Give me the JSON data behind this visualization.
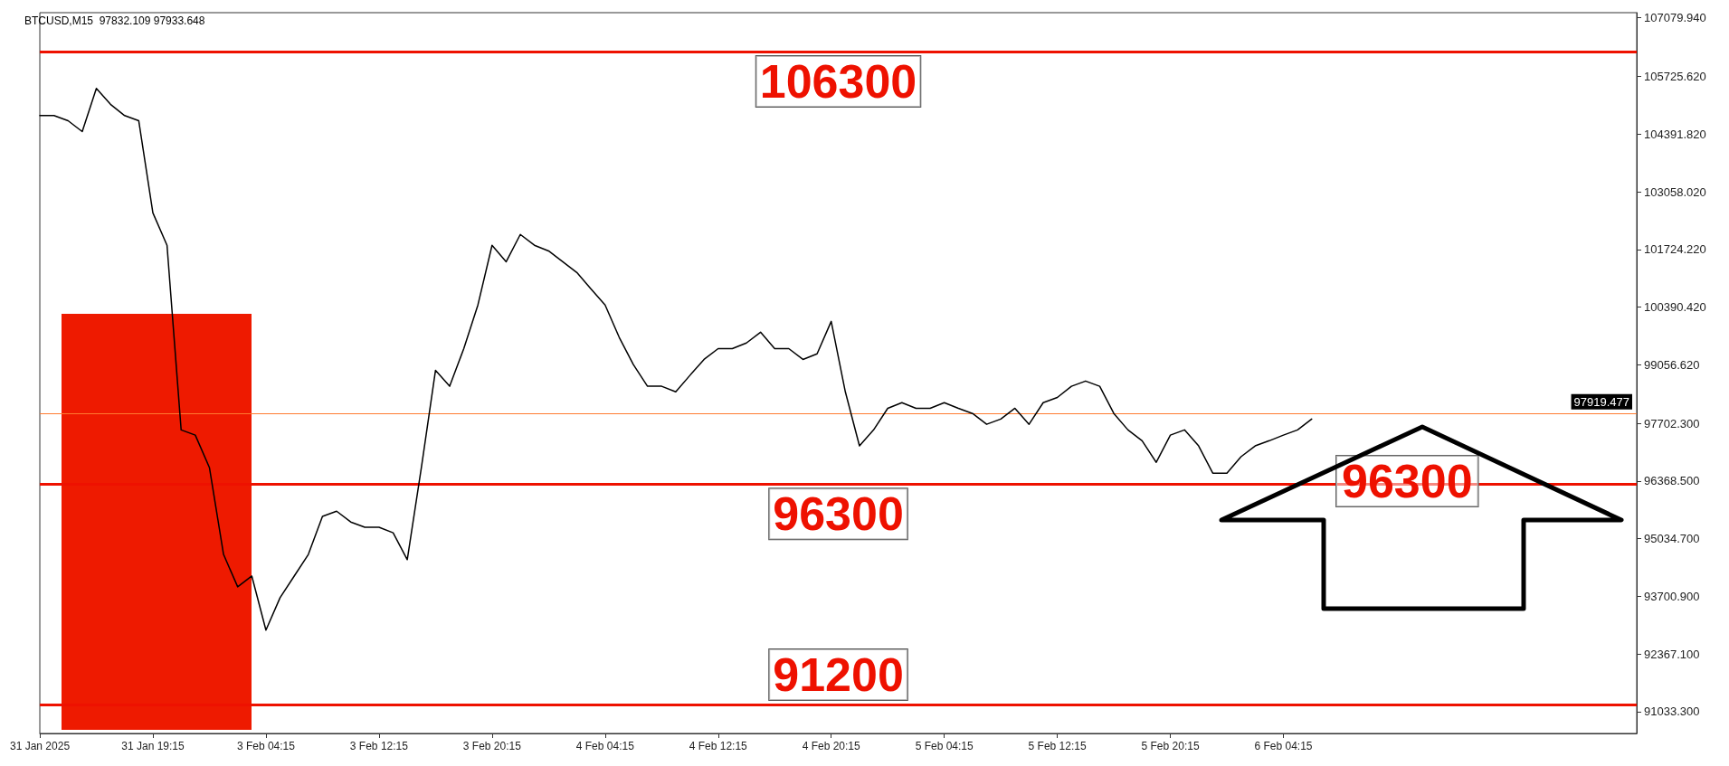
{
  "chart_data": {
    "type": "line",
    "title": "BTCUSD,M15  97832.109 97933.648",
    "categories": [
      "31 Jan 2025",
      null,
      null,
      null,
      null,
      null,
      null,
      null,
      "31 Jan 19:15",
      null,
      null,
      null,
      null,
      null,
      null,
      null,
      "3 Feb 04:15",
      null,
      null,
      null,
      null,
      null,
      null,
      null,
      "3 Feb 12:15",
      null,
      null,
      null,
      null,
      null,
      null,
      null,
      "3 Feb 20:15",
      null,
      null,
      null,
      null,
      null,
      null,
      null,
      "4 Feb 04:15",
      null,
      null,
      null,
      null,
      null,
      null,
      null,
      "4 Feb 12:15",
      null,
      null,
      null,
      null,
      null,
      null,
      null,
      "4 Feb 20:15",
      null,
      null,
      null,
      null,
      null,
      null,
      null,
      "5 Feb 04:15",
      null,
      null,
      null,
      null,
      null,
      null,
      null,
      "5 Feb 12:15",
      null,
      null,
      null,
      null,
      null,
      null,
      null,
      "5 Feb 20:15",
      null,
      null,
      null,
      null,
      null,
      null,
      null,
      "6 Feb 04:15",
      null,
      null,
      null,
      null,
      null,
      null,
      null,
      null,
      null,
      null,
      null,
      null,
      null,
      null,
      null,
      null,
      null,
      null,
      null,
      null,
      null,
      null,
      null,
      null,
      null
    ],
    "series": [
      {
        "color": "#000000",
        "values": [
          104820,
          104820,
          104700,
          104450,
          105450,
          105080,
          104820,
          104700,
          102570,
          101820,
          97550,
          97430,
          96680,
          94670,
          93920,
          94170,
          92920,
          93670,
          94170,
          94670,
          95550,
          95670,
          95420,
          95300,
          95300,
          95170,
          94550,
          96680,
          98930,
          98560,
          99430,
          100440,
          101820,
          101440,
          102070,
          101820,
          101690,
          101440,
          101190,
          100810,
          100440,
          99690,
          99060,
          98560,
          98560,
          98430,
          98810,
          99180,
          99430,
          99430,
          99560,
          99810,
          99430,
          99430,
          99180,
          99310,
          100060,
          98430,
          97180,
          97550,
          98050,
          98180,
          98050,
          98050,
          98180,
          98050,
          97930,
          97680,
          97800,
          98050,
          97680,
          98180,
          98300,
          98560,
          98680,
          98560,
          97930,
          97550,
          97300,
          96800,
          97430,
          97550,
          97180,
          96550,
          96550,
          96930,
          97180,
          97300,
          97430,
          97550,
          97800,
          null,
          null,
          null,
          null,
          null,
          null,
          null,
          null,
          null,
          null,
          null,
          null,
          null,
          null,
          null,
          null,
          null,
          null,
          null,
          null,
          null,
          null,
          null
        ]
      }
    ],
    "ylim": [
      90530,
      107200
    ],
    "yticks": [
      {
        "value": 91033.3,
        "label": "91033.300"
      },
      {
        "value": 92367.1,
        "label": "92367.100"
      },
      {
        "value": 93700.9,
        "label": "93700.900"
      },
      {
        "value": 95034.7,
        "label": "95034.700"
      },
      {
        "value": 96368.5,
        "label": "96368.500"
      },
      {
        "value": 97702.3,
        "label": "97702.300"
      },
      {
        "value": 99056.62,
        "label": "99056.620"
      },
      {
        "value": 100390.42,
        "label": "100390.420"
      },
      {
        "value": 101724.22,
        "label": "101724.220"
      },
      {
        "value": 103058.02,
        "label": "103058.020"
      },
      {
        "value": 104391.82,
        "label": "104391.820"
      },
      {
        "value": 105725.62,
        "label": "105725.620"
      },
      {
        "value": 107079.94,
        "label": "107079.940"
      }
    ],
    "ref_lines": [
      {
        "axis": "y",
        "value": 106300,
        "label": "106300",
        "color": "#ee1100"
      },
      {
        "axis": "y",
        "value": 96300,
        "label": "96300",
        "color": "#ee1100"
      },
      {
        "axis": "y",
        "value": 91200,
        "label": "91200",
        "color": "#ee1100"
      },
      {
        "axis": "y",
        "value": 97919.477,
        "label": "97919.477",
        "color": "#ff7a30"
      }
    ],
    "annotations": [
      "96300"
    ],
    "marker": "none",
    "line_style": "solid"
  }
}
